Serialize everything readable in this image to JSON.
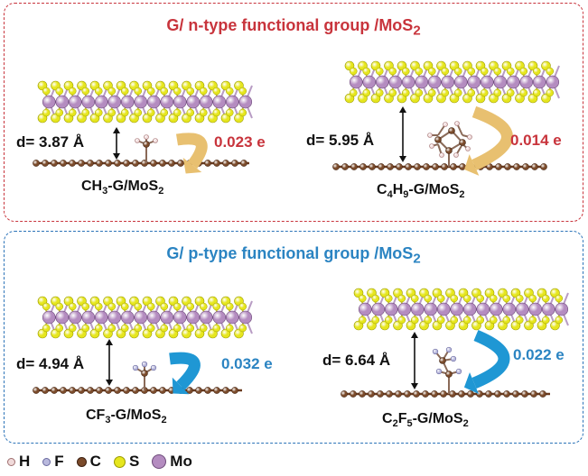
{
  "n_panel": {
    "title": "G/ n-type functional group /MoS",
    "title_sub": "2",
    "left": {
      "distance": "d= 3.87 Å",
      "charge": "0.023 e",
      "label_parts": [
        "CH",
        "3",
        "-G/MoS",
        "2"
      ]
    },
    "right": {
      "distance": "d= 5.95 Å",
      "charge": "0.014 e",
      "label_parts": [
        "C",
        "4",
        "H",
        "9",
        "-G/MoS",
        "2"
      ]
    }
  },
  "p_panel": {
    "title": "G/ p-type functional group /MoS",
    "title_sub": "2",
    "left": {
      "distance": "d= 4.94 Å",
      "charge": "0.032 e",
      "label_parts": [
        "CF",
        "3",
        "-G/MoS",
        "2"
      ]
    },
    "right": {
      "distance": "d= 6.64 Å",
      "charge": "0.022 e",
      "label_parts": [
        "C",
        "2",
        "F",
        "5",
        "-G/MoS",
        "2"
      ]
    }
  },
  "legend": [
    {
      "symbol": "H",
      "color": "#f0dada"
    },
    {
      "symbol": "F",
      "color": "#b9b9dd"
    },
    {
      "symbol": "C",
      "color": "#7a4a2a"
    },
    {
      "symbol": "S",
      "color": "#e6e61e"
    },
    {
      "symbol": "Mo",
      "color": "#b48cc0"
    }
  ],
  "colors": {
    "n_accent": "#c8343c",
    "p_accent": "#2b84c2",
    "n_arrow": "#e8c070",
    "p_arrow": "#1f97d4",
    "carbon": "#7a4a2a",
    "sulfur": "#e6e61e",
    "molybdenum": "#b48cc0"
  }
}
